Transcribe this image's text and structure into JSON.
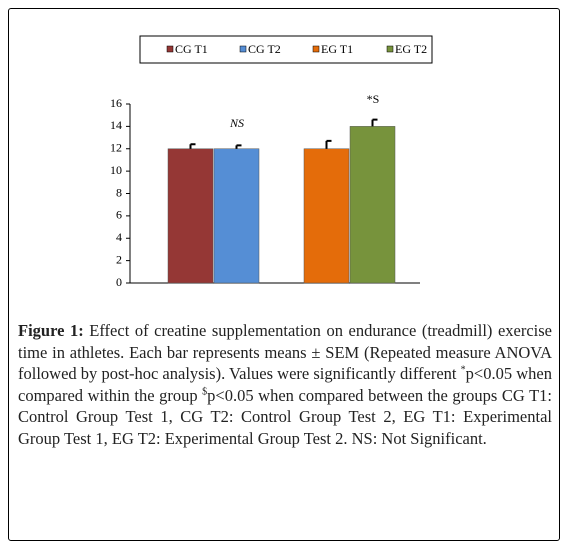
{
  "chart_data": {
    "type": "bar",
    "categories": [
      null,
      null
    ],
    "series": [
      {
        "name": "CG T1",
        "color": "#953735",
        "values": [
          12,
          null
        ],
        "errors": [
          0.4,
          null
        ]
      },
      {
        "name": "CG T2",
        "color": "#558ed5",
        "values": [
          12,
          null
        ],
        "errors": [
          0.3,
          null
        ]
      },
      {
        "name": "EG T1",
        "color": "#e46c0a",
        "values": [
          null,
          12
        ],
        "errors": [
          null,
          0.7
        ]
      },
      {
        "name": "EG T2",
        "color": "#77933c",
        "values": [
          null,
          14
        ],
        "errors": [
          null,
          0.6
        ]
      }
    ],
    "ylim": [
      0,
      16
    ],
    "yticks": [
      0,
      2,
      4,
      6,
      8,
      10,
      12,
      14,
      16
    ],
    "annotations": [
      "NS",
      "*S"
    ]
  },
  "caption": {
    "label": "Figure 1:",
    "segments": [
      "Effect of creatine supplementation on endurance (treadmill) exercise time in athletes. Each bar represents means ± SEM (Repeated measure ANOVA followed by post-hoc analysis). Values were significantly different ",
      "*",
      "p<0.05 when compared within the group ",
      "$",
      "p<0.05 when compared between the groups CG T1: Control Group Test 1, CG T2: Control Group Test 2, EG T1: Experimental Group Test 1, EG T2: Experimental Group Test 2. NS: Not Significant."
    ]
  }
}
